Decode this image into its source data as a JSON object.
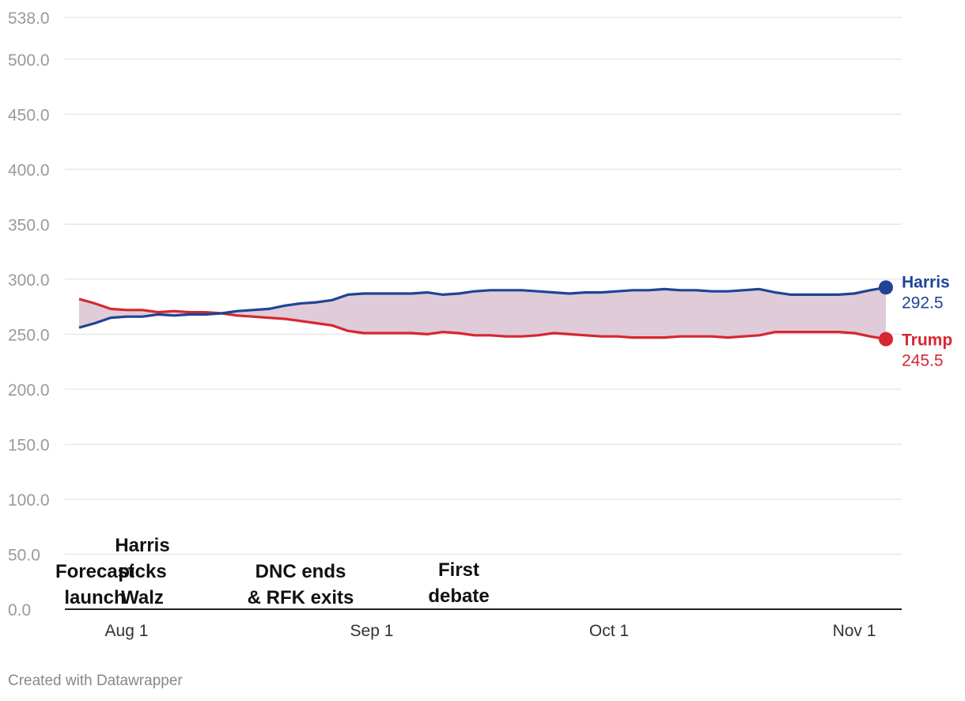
{
  "chart_data": {
    "type": "line",
    "title": "",
    "xlabel": "",
    "ylabel": "",
    "ylim": [
      0,
      538
    ],
    "y_ticks": [
      "0.0",
      "50.0",
      "100.0",
      "150.0",
      "200.0",
      "250.0",
      "300.0",
      "350.0",
      "400.0",
      "450.0",
      "500.0",
      "538.0"
    ],
    "y_tick_values": [
      0,
      50,
      100,
      150,
      200,
      250,
      300,
      350,
      400,
      450,
      500,
      538
    ],
    "x_range": [
      "Jul 26",
      "Nov 5"
    ],
    "x_ticks": [
      {
        "label": "Aug 1",
        "day": 6
      },
      {
        "label": "Sep 1",
        "day": 37
      },
      {
        "label": "Oct 1",
        "day": 67
      },
      {
        "label": "Nov 1",
        "day": 98
      }
    ],
    "x_days": [
      0,
      2,
      4,
      6,
      8,
      10,
      12,
      14,
      16,
      18,
      20,
      22,
      24,
      26,
      28,
      30,
      32,
      34,
      36,
      38,
      40,
      42,
      44,
      46,
      48,
      50,
      52,
      54,
      56,
      58,
      60,
      62,
      64,
      66,
      68,
      70,
      72,
      74,
      76,
      78,
      80,
      82,
      84,
      86,
      88,
      90,
      92,
      94,
      96,
      98,
      100,
      102
    ],
    "series": [
      {
        "name": "Harris",
        "color": "#1f4494",
        "final_label": "292.5",
        "values": [
          256,
          260,
          265,
          266,
          266,
          268,
          267,
          268,
          268,
          269,
          271,
          272,
          273,
          276,
          278,
          279,
          281,
          286,
          287,
          287,
          287,
          287,
          288,
          286,
          287,
          289,
          290,
          290,
          290,
          289,
          288,
          287,
          288,
          288,
          289,
          290,
          290,
          291,
          290,
          290,
          289,
          289,
          290,
          291,
          288,
          286,
          286,
          286,
          286,
          287,
          290,
          292.5
        ]
      },
      {
        "name": "Trump",
        "color": "#d62732",
        "final_label": "245.5",
        "values": [
          282,
          278,
          273,
          272,
          272,
          270,
          271,
          270,
          270,
          269,
          267,
          266,
          265,
          264,
          262,
          260,
          258,
          253,
          251,
          251,
          251,
          251,
          250,
          252,
          251,
          249,
          249,
          248,
          248,
          249,
          251,
          250,
          249,
          248,
          248,
          247,
          247,
          247,
          248,
          248,
          248,
          247,
          248,
          249,
          252,
          252,
          252,
          252,
          252,
          251,
          248,
          245.5
        ]
      }
    ],
    "annotations": [
      {
        "lines": [
          "Forecast",
          "launch"
        ],
        "day": 1
      },
      {
        "lines": [
          "Harris",
          "picks",
          "Walz"
        ],
        "day": 7
      },
      {
        "lines": [
          "DNC ends",
          "& RFK exits"
        ],
        "day": 27
      },
      {
        "lines": [
          "First",
          "debate"
        ],
        "day": 47
      }
    ]
  },
  "footer": "Created with Datawrapper"
}
